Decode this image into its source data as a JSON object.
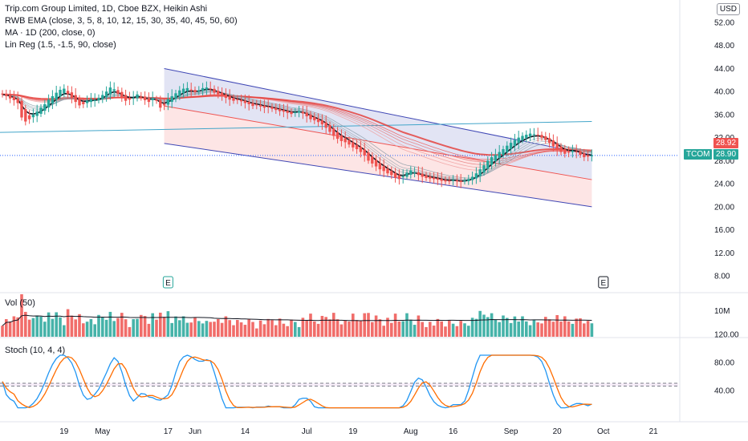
{
  "chart_data": {
    "type": "candlestick",
    "legend": {
      "title": "Trip.com Group Limited, 1D, Cboe BZX, Heikin Ashi",
      "indicator1": "RWB EMA (close, 3, 5, 8, 10, 12, 15, 30, 35, 40, 45, 50, 60)",
      "indicator2": "MA · 1D (200, close, 0)",
      "indicator3": "Lin Reg (1.5, -1.5, 90, close)"
    },
    "currency": "USD",
    "price_axis": {
      "ticks": [
        "52.00",
        "48.00",
        "44.00",
        "40.00",
        "36.00",
        "32.00",
        "28.00",
        "24.00",
        "20.00",
        "16.00",
        "12.00",
        "8.00"
      ],
      "ylim": [
        4,
        54
      ]
    },
    "x_labels": [
      "19",
      "May",
      "17",
      "Jun",
      "14",
      "Jul",
      "19",
      "Aug",
      "16",
      "Sep",
      "20",
      "Oct",
      "21"
    ],
    "x_label_index": [
      16,
      26,
      43,
      50,
      63,
      79,
      91,
      106,
      117,
      132,
      144,
      156,
      169
    ],
    "last_price": {
      "symbol": "TCOM",
      "value": "28.90",
      "ma_value": "28.92"
    },
    "events": [
      "E",
      "E"
    ],
    "event_index": [
      43,
      156
    ],
    "closes": [
      39.5,
      39.2,
      38.8,
      38.5,
      38.0,
      35.5,
      34.8,
      35.2,
      36.0,
      36.5,
      37.2,
      37.8,
      38.6,
      39.2,
      39.8,
      40.3,
      40.5,
      39.6,
      38.9,
      38.2,
      37.6,
      37.8,
      38.4,
      38.7,
      38.5,
      38.9,
      39.4,
      40.0,
      40.7,
      40.4,
      39.6,
      38.9,
      38.4,
      38.6,
      38.9,
      39.5,
      39.1,
      38.5,
      38.2,
      38.8,
      38.4,
      37.2,
      37.6,
      38.7,
      39.2,
      39.7,
      40.2,
      40.5,
      40.6,
      40.2,
      39.9,
      40.2,
      40.6,
      40.7,
      40.4,
      39.8,
      39.5,
      39.2,
      38.9,
      38.6,
      38.4,
      38.5,
      38.3,
      38.0,
      37.8,
      37.5,
      37.6,
      37.4,
      37.2,
      37.3,
      37.0,
      36.8,
      36.6,
      36.5,
      36.3,
      36.1,
      36.4,
      36.6,
      36.2,
      35.7,
      35.2,
      35.0,
      34.7,
      34.3,
      33.7,
      33.0,
      32.3,
      31.8,
      31.4,
      31.2,
      30.8,
      30.3,
      30.0,
      29.5,
      28.9,
      28.0,
      27.5,
      27.0,
      26.5,
      26.2,
      25.8,
      25.5,
      25.0,
      24.8,
      25.3,
      25.9,
      26.3,
      26.0,
      25.5,
      25.2,
      25.0,
      24.9,
      24.8,
      24.7,
      24.5,
      24.4,
      24.5,
      24.6,
      24.4,
      24.3,
      24.5,
      24.8,
      25.2,
      25.8,
      26.5,
      27.2,
      28.0,
      28.6,
      29.0,
      29.5,
      30.0,
      30.6,
      31.1,
      31.6,
      32.0,
      32.3,
      32.5,
      32.7,
      32.6,
      32.4,
      32.0,
      31.6,
      31.1,
      30.5,
      29.9,
      29.5,
      29.2,
      29.4,
      29.7,
      29.5,
      29.0,
      28.6,
      28.7,
      28.9
    ],
    "volume": {
      "label": "Vol (50)",
      "ticks": [
        "10M"
      ],
      "ylim": [
        0,
        14
      ]
    },
    "stochastic": {
      "label": "Stoch (10, 4, 4)",
      "ticks": [
        "120.00",
        "80.00",
        "40.00"
      ],
      "ylim": [
        0,
        125
      ],
      "upper_band": 50,
      "lower_band": 46
    },
    "colors": {
      "up": "#26a69a",
      "down": "#ef5350",
      "black": "#131722",
      "channel_line": "#3f47b5",
      "ma200": "#42a5c9",
      "price_line": "#2962ff",
      "stoch_k": "#2196f3",
      "stoch_d": "#ff6d00"
    }
  }
}
